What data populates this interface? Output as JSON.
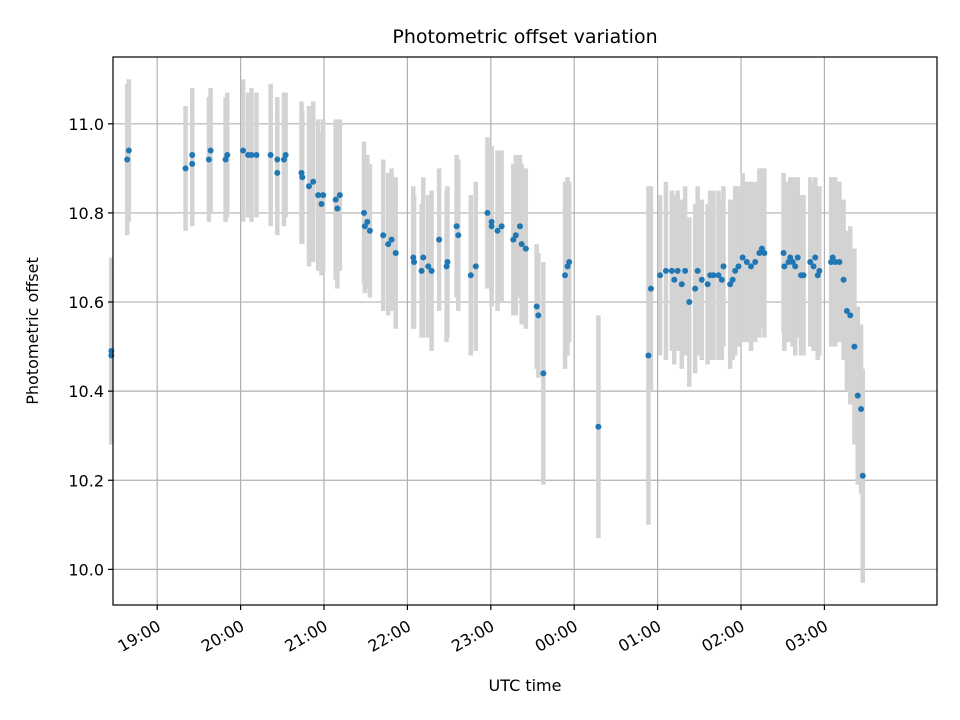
{
  "chart_data": {
    "type": "scatter",
    "title": "Photometric offset variation",
    "xlabel": "UTC time",
    "ylabel": "Photometric offset",
    "x_unit": "hours since 18:00 UTC (axis continues past midnight)",
    "xlim": [
      0.47,
      10.35
    ],
    "ylim": [
      9.92,
      11.15
    ],
    "x_ticks": [
      {
        "value": 1,
        "label": "19:00"
      },
      {
        "value": 2,
        "label": "20:00"
      },
      {
        "value": 3,
        "label": "21:00"
      },
      {
        "value": 4,
        "label": "22:00"
      },
      {
        "value": 5,
        "label": "23:00"
      },
      {
        "value": 6,
        "label": "00:00"
      },
      {
        "value": 7,
        "label": "01:00"
      },
      {
        "value": 8,
        "label": "02:00"
      },
      {
        "value": 9,
        "label": "03:00"
      }
    ],
    "y_ticks": [
      {
        "value": 10.0,
        "label": "10.0"
      },
      {
        "value": 10.2,
        "label": "10.2"
      },
      {
        "value": 10.4,
        "label": "10.4"
      },
      {
        "value": 10.6,
        "label": "10.6"
      },
      {
        "value": 10.8,
        "label": "10.8"
      },
      {
        "value": 11.0,
        "label": "11.0"
      }
    ],
    "grid": true,
    "colors": {
      "points": "#1f77b4",
      "errorbars": "#d3d3d3",
      "grid": "#b0b0b0"
    },
    "points": [
      [
        0.45,
        10.49,
        0.21
      ],
      [
        0.45,
        10.48,
        0.2
      ],
      [
        0.64,
        10.92,
        0.17
      ],
      [
        0.66,
        10.94,
        0.16
      ],
      [
        1.34,
        10.9,
        0.14
      ],
      [
        1.42,
        10.91,
        0.14
      ],
      [
        1.42,
        10.93,
        0.15
      ],
      [
        1.62,
        10.92,
        0.14
      ],
      [
        1.64,
        10.94,
        0.14
      ],
      [
        1.82,
        10.92,
        0.14
      ],
      [
        1.84,
        10.93,
        0.14
      ],
      [
        2.03,
        10.94,
        0.16
      ],
      [
        2.09,
        10.93,
        0.14
      ],
      [
        2.13,
        10.93,
        0.15
      ],
      [
        2.19,
        10.93,
        0.14
      ],
      [
        2.36,
        10.93,
        0.16
      ],
      [
        2.44,
        10.89,
        0.14
      ],
      [
        2.44,
        10.92,
        0.14
      ],
      [
        2.52,
        10.92,
        0.15
      ],
      [
        2.54,
        10.93,
        0.14
      ],
      [
        2.73,
        10.89,
        0.16
      ],
      [
        2.74,
        10.88,
        0.15
      ],
      [
        2.82,
        10.86,
        0.18
      ],
      [
        2.87,
        10.87,
        0.18
      ],
      [
        2.93,
        10.84,
        0.17
      ],
      [
        2.97,
        10.82,
        0.16
      ],
      [
        2.99,
        10.84,
        0.17
      ],
      [
        3.14,
        10.83,
        0.18
      ],
      [
        3.16,
        10.81,
        0.18
      ],
      [
        3.19,
        10.84,
        0.17
      ],
      [
        3.48,
        10.8,
        0.16
      ],
      [
        3.49,
        10.77,
        0.15
      ],
      [
        3.52,
        10.78,
        0.15
      ],
      [
        3.55,
        10.76,
        0.15
      ],
      [
        3.71,
        10.75,
        0.17
      ],
      [
        3.77,
        10.73,
        0.16
      ],
      [
        3.81,
        10.74,
        0.16
      ],
      [
        3.86,
        10.71,
        0.17
      ],
      [
        4.07,
        10.7,
        0.16
      ],
      [
        4.08,
        10.69,
        0.15
      ],
      [
        4.17,
        10.67,
        0.15
      ],
      [
        4.19,
        10.7,
        0.18
      ],
      [
        4.25,
        10.68,
        0.16
      ],
      [
        4.29,
        10.67,
        0.18
      ],
      [
        4.38,
        10.74,
        0.16
      ],
      [
        4.47,
        10.68,
        0.17
      ],
      [
        4.48,
        10.69,
        0.17
      ],
      [
        4.59,
        10.77,
        0.16
      ],
      [
        4.61,
        10.75,
        0.17
      ],
      [
        4.76,
        10.66,
        0.18
      ],
      [
        4.82,
        10.68,
        0.19
      ],
      [
        4.96,
        10.8,
        0.17
      ],
      [
        5.01,
        10.77,
        0.18
      ],
      [
        5.01,
        10.78,
        0.16
      ],
      [
        5.08,
        10.76,
        0.18
      ],
      [
        5.13,
        10.77,
        0.17
      ],
      [
        5.27,
        10.74,
        0.17
      ],
      [
        5.3,
        10.75,
        0.18
      ],
      [
        5.35,
        10.77,
        0.16
      ],
      [
        5.37,
        10.73,
        0.18
      ],
      [
        5.42,
        10.72,
        0.18
      ],
      [
        5.55,
        10.59,
        0.14
      ],
      [
        5.57,
        10.57,
        0.14
      ],
      [
        5.63,
        10.44,
        0.25
      ],
      [
        5.89,
        10.66,
        0.21
      ],
      [
        5.92,
        10.68,
        0.2
      ],
      [
        5.94,
        10.69,
        0.18
      ],
      [
        6.29,
        10.32,
        0.25
      ],
      [
        6.89,
        10.48,
        0.38
      ],
      [
        6.92,
        10.63,
        0.23
      ],
      [
        7.03,
        10.66,
        0.18
      ],
      [
        7.1,
        10.67,
        0.2
      ],
      [
        7.17,
        10.67,
        0.18
      ],
      [
        7.2,
        10.65,
        0.19
      ],
      [
        7.24,
        10.67,
        0.18
      ],
      [
        7.29,
        10.64,
        0.19
      ],
      [
        7.33,
        10.67,
        0.19
      ],
      [
        7.38,
        10.6,
        0.19
      ],
      [
        7.45,
        10.63,
        0.19
      ],
      [
        7.48,
        10.67,
        0.19
      ],
      [
        7.53,
        10.65,
        0.18
      ],
      [
        7.6,
        10.64,
        0.18
      ],
      [
        7.63,
        10.66,
        0.19
      ],
      [
        7.67,
        10.66,
        0.19
      ],
      [
        7.73,
        10.66,
        0.19
      ],
      [
        7.77,
        10.65,
        0.18
      ],
      [
        7.79,
        10.68,
        0.18
      ],
      [
        7.87,
        10.64,
        0.19
      ],
      [
        7.9,
        10.65,
        0.18
      ],
      [
        7.93,
        10.67,
        0.19
      ],
      [
        7.97,
        10.68,
        0.18
      ],
      [
        8.02,
        10.7,
        0.19
      ],
      [
        8.07,
        10.69,
        0.18
      ],
      [
        8.12,
        10.68,
        0.19
      ],
      [
        8.17,
        10.69,
        0.18
      ],
      [
        8.22,
        10.71,
        0.19
      ],
      [
        8.25,
        10.72,
        0.18
      ],
      [
        8.28,
        10.71,
        0.19
      ],
      [
        8.51,
        10.71,
        0.18
      ],
      [
        8.52,
        10.68,
        0.19
      ],
      [
        8.57,
        10.69,
        0.18
      ],
      [
        8.59,
        10.7,
        0.18
      ],
      [
        8.62,
        10.69,
        0.19
      ],
      [
        8.65,
        10.68,
        0.2
      ],
      [
        8.68,
        10.7,
        0.18
      ],
      [
        8.72,
        10.66,
        0.18
      ],
      [
        8.75,
        10.66,
        0.18
      ],
      [
        8.83,
        10.69,
        0.19
      ],
      [
        8.87,
        10.68,
        0.19
      ],
      [
        8.89,
        10.7,
        0.18
      ],
      [
        8.92,
        10.66,
        0.19
      ],
      [
        8.94,
        10.67,
        0.19
      ],
      [
        9.08,
        10.69,
        0.19
      ],
      [
        9.1,
        10.7,
        0.18
      ],
      [
        9.13,
        10.69,
        0.19
      ],
      [
        9.18,
        10.69,
        0.18
      ],
      [
        9.23,
        10.65,
        0.18
      ],
      [
        9.27,
        10.58,
        0.18
      ],
      [
        9.31,
        10.57,
        0.2
      ],
      [
        9.36,
        10.5,
        0.22
      ],
      [
        9.4,
        10.39,
        0.2
      ],
      [
        9.44,
        10.36,
        0.19
      ],
      [
        9.46,
        10.21,
        0.24
      ]
    ]
  }
}
